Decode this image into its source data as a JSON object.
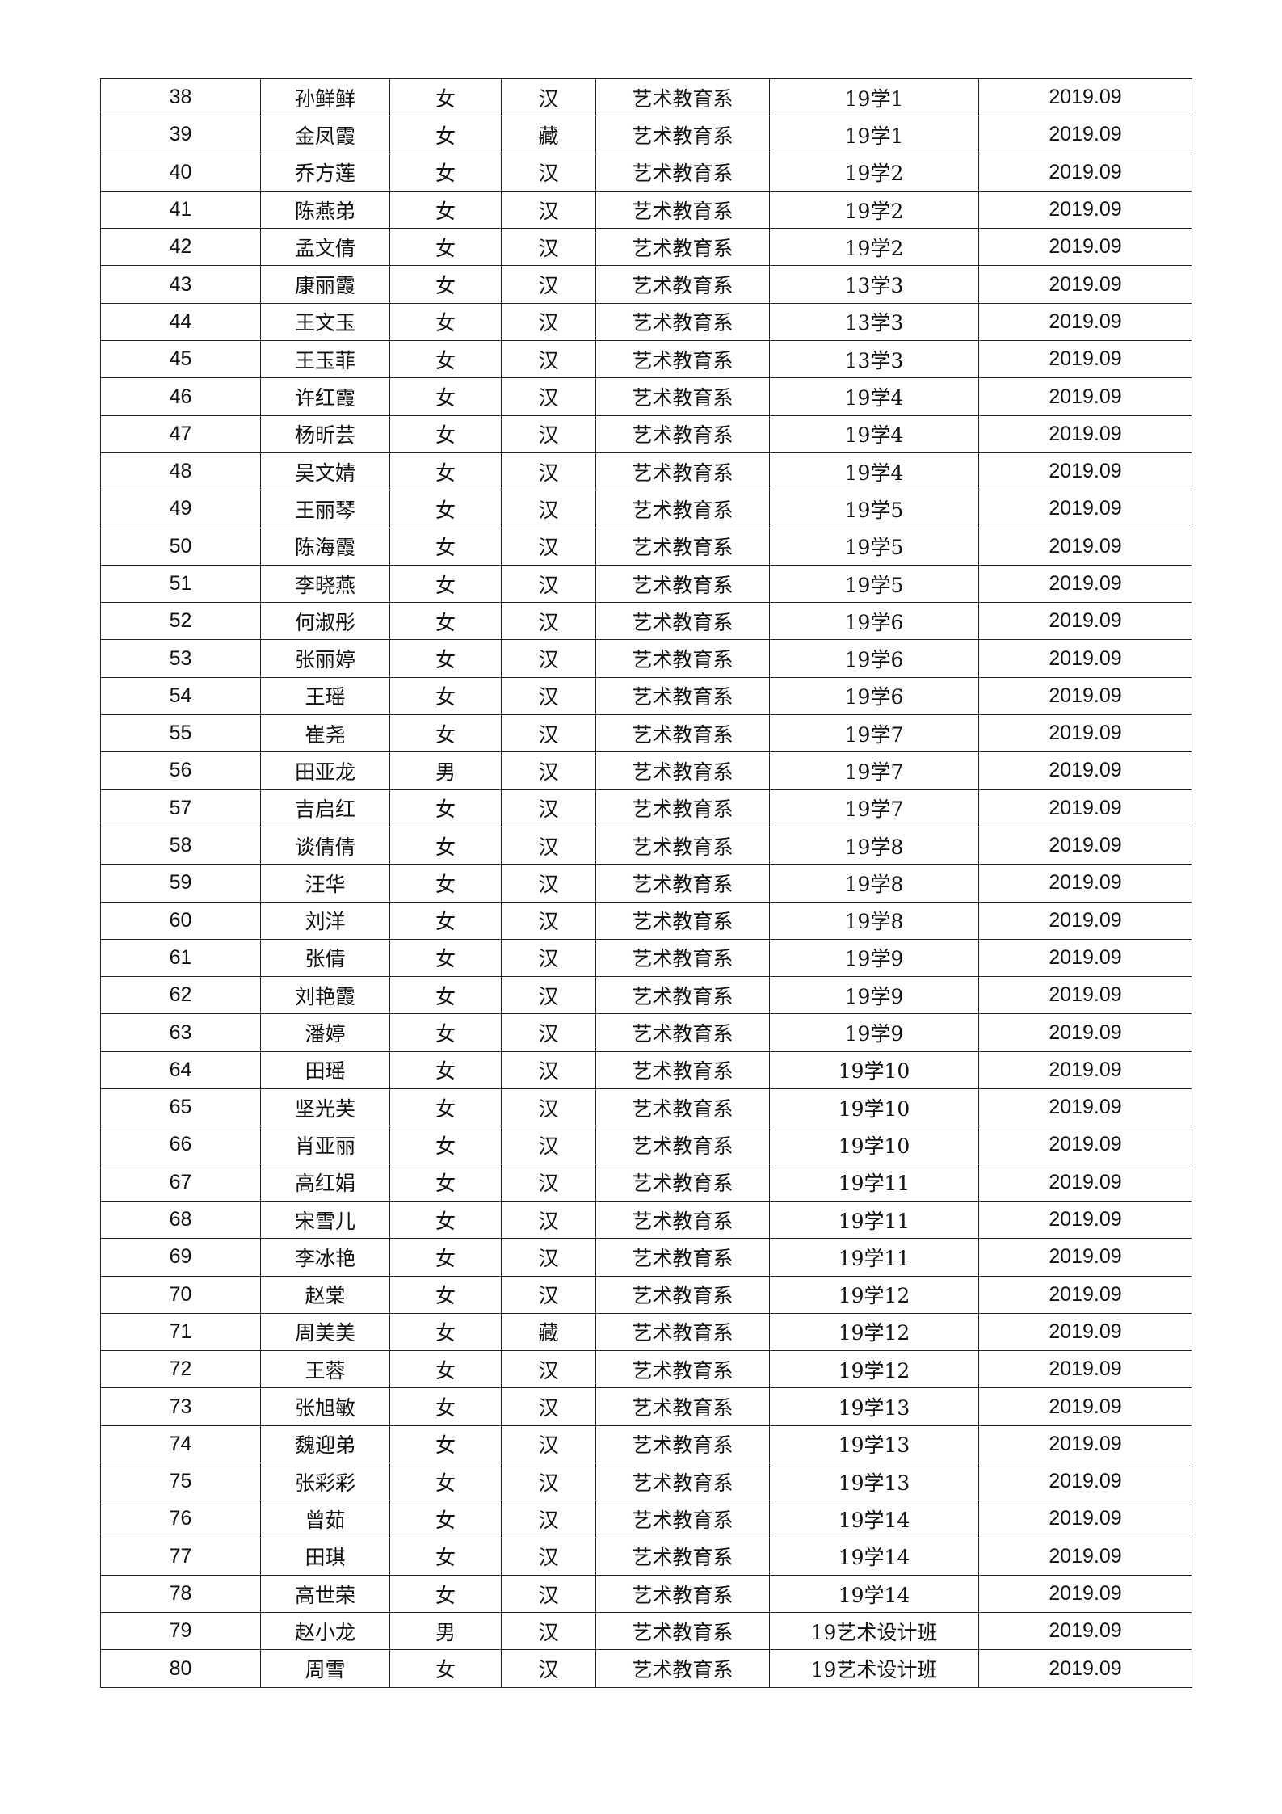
{
  "rows": [
    [
      "38",
      "孙鲜鲜",
      "女",
      "汉",
      "艺术教育系",
      "19学1",
      "2019.09"
    ],
    [
      "39",
      "金凤霞",
      "女",
      "藏",
      "艺术教育系",
      "19学1",
      "2019.09"
    ],
    [
      "40",
      "乔方莲",
      "女",
      "汉",
      "艺术教育系",
      "19学2",
      "2019.09"
    ],
    [
      "41",
      "陈燕弟",
      "女",
      "汉",
      "艺术教育系",
      "19学2",
      "2019.09"
    ],
    [
      "42",
      "孟文倩",
      "女",
      "汉",
      "艺术教育系",
      "19学2",
      "2019.09"
    ],
    [
      "43",
      "康丽霞",
      "女",
      "汉",
      "艺术教育系",
      "13学3",
      "2019.09"
    ],
    [
      "44",
      "王文玉",
      "女",
      "汉",
      "艺术教育系",
      "13学3",
      "2019.09"
    ],
    [
      "45",
      "王玉菲",
      "女",
      "汉",
      "艺术教育系",
      "13学3",
      "2019.09"
    ],
    [
      "46",
      "许红霞",
      "女",
      "汉",
      "艺术教育系",
      "19学4",
      "2019.09"
    ],
    [
      "47",
      "杨昕芸",
      "女",
      "汉",
      "艺术教育系",
      "19学4",
      "2019.09"
    ],
    [
      "48",
      "吴文婧",
      "女",
      "汉",
      "艺术教育系",
      "19学4",
      "2019.09"
    ],
    [
      "49",
      "王丽琴",
      "女",
      "汉",
      "艺术教育系",
      "19学5",
      "2019.09"
    ],
    [
      "50",
      "陈海霞",
      "女",
      "汉",
      "艺术教育系",
      "19学5",
      "2019.09"
    ],
    [
      "51",
      "李晓燕",
      "女",
      "汉",
      "艺术教育系",
      "19学5",
      "2019.09"
    ],
    [
      "52",
      "何淑彤",
      "女",
      "汉",
      "艺术教育系",
      "19学6",
      "2019.09"
    ],
    [
      "53",
      "张丽婷",
      "女",
      "汉",
      "艺术教育系",
      "19学6",
      "2019.09"
    ],
    [
      "54",
      "王瑶",
      "女",
      "汉",
      "艺术教育系",
      "19学6",
      "2019.09"
    ],
    [
      "55",
      "崔尧",
      "女",
      "汉",
      "艺术教育系",
      "19学7",
      "2019.09"
    ],
    [
      "56",
      "田亚龙",
      "男",
      "汉",
      "艺术教育系",
      "19学7",
      "2019.09"
    ],
    [
      "57",
      "吉启红",
      "女",
      "汉",
      "艺术教育系",
      "19学7",
      "2019.09"
    ],
    [
      "58",
      "谈倩倩",
      "女",
      "汉",
      "艺术教育系",
      "19学8",
      "2019.09"
    ],
    [
      "59",
      "汪华",
      "女",
      "汉",
      "艺术教育系",
      "19学8",
      "2019.09"
    ],
    [
      "60",
      "刘洋",
      "女",
      "汉",
      "艺术教育系",
      "19学8",
      "2019.09"
    ],
    [
      "61",
      "张倩",
      "女",
      "汉",
      "艺术教育系",
      "19学9",
      "2019.09"
    ],
    [
      "62",
      "刘艳霞",
      "女",
      "汉",
      "艺术教育系",
      "19学9",
      "2019.09"
    ],
    [
      "63",
      "潘婷",
      "女",
      "汉",
      "艺术教育系",
      "19学9",
      "2019.09"
    ],
    [
      "64",
      "田瑶",
      "女",
      "汉",
      "艺术教育系",
      "19学10",
      "2019.09"
    ],
    [
      "65",
      "坚光芙",
      "女",
      "汉",
      "艺术教育系",
      "19学10",
      "2019.09"
    ],
    [
      "66",
      "肖亚丽",
      "女",
      "汉",
      "艺术教育系",
      "19学10",
      "2019.09"
    ],
    [
      "67",
      "高红娟",
      "女",
      "汉",
      "艺术教育系",
      "19学11",
      "2019.09"
    ],
    [
      "68",
      "宋雪儿",
      "女",
      "汉",
      "艺术教育系",
      "19学11",
      "2019.09"
    ],
    [
      "69",
      "李冰艳",
      "女",
      "汉",
      "艺术教育系",
      "19学11",
      "2019.09"
    ],
    [
      "70",
      "赵棠",
      "女",
      "汉",
      "艺术教育系",
      "19学12",
      "2019.09"
    ],
    [
      "71",
      "周美美",
      "女",
      "藏",
      "艺术教育系",
      "19学12",
      "2019.09"
    ],
    [
      "72",
      "王蓉",
      "女",
      "汉",
      "艺术教育系",
      "19学12",
      "2019.09"
    ],
    [
      "73",
      "张旭敏",
      "女",
      "汉",
      "艺术教育系",
      "19学13",
      "2019.09"
    ],
    [
      "74",
      "魏迎弟",
      "女",
      "汉",
      "艺术教育系",
      "19学13",
      "2019.09"
    ],
    [
      "75",
      "张彩彩",
      "女",
      "汉",
      "艺术教育系",
      "19学13",
      "2019.09"
    ],
    [
      "76",
      "曾茹",
      "女",
      "汉",
      "艺术教育系",
      "19学14",
      "2019.09"
    ],
    [
      "77",
      "田琪",
      "女",
      "汉",
      "艺术教育系",
      "19学14",
      "2019.09"
    ],
    [
      "78",
      "高世荣",
      "女",
      "汉",
      "艺术教育系",
      "19学14",
      "2019.09"
    ],
    [
      "79",
      "赵小龙",
      "男",
      "汉",
      "艺术教育系",
      "19艺术设计班",
      "2019.09"
    ],
    [
      "80",
      "周雪",
      "女",
      "汉",
      "艺术教育系",
      "19艺术设计班",
      "2019.09"
    ]
  ]
}
